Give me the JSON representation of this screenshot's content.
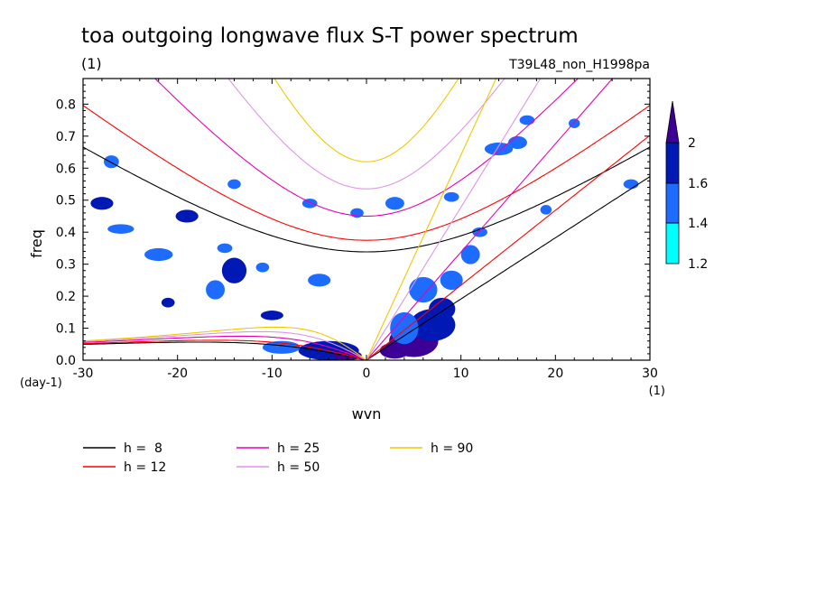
{
  "chart_data": {
    "type": "heatmap",
    "title": "toa outgoing longwave flux S-T power spectrum",
    "subtitle": "(1)",
    "run_label": "T39L48_non_H1998pa",
    "xlabel": "wvn",
    "ylabel": "freq",
    "x_unit": "(1)",
    "y_unit": "(day-1)",
    "xlim": [
      -30,
      30
    ],
    "ylim": [
      0,
      0.88
    ],
    "x_ticks": [
      -30,
      -20,
      -10,
      0,
      10,
      20,
      30
    ],
    "x_tick_labels": [
      "-30",
      "-20",
      "-10",
      "0",
      "10",
      "20",
      "30"
    ],
    "y_ticks": [
      0,
      0.1,
      0.2,
      0.3,
      0.4,
      0.5,
      0.6,
      0.7,
      0.8
    ],
    "y_tick_labels": [
      "0.0",
      "0.1",
      "0.2",
      "0.3",
      "0.4",
      "0.5",
      "0.6",
      "0.7",
      "0.8"
    ],
    "colorbar": {
      "levels": [
        1.2,
        1.4,
        1.6,
        2
      ],
      "level_labels": [
        "1.2",
        "1.4",
        "1.6",
        "2"
      ],
      "colors": [
        "#00ffff",
        "#1e6cff",
        "#0018b4",
        "#3c0096"
      ]
    },
    "blobs": [
      {
        "x": 5,
        "y": 0.06,
        "rx": 2.6,
        "ry": 0.05,
        "level": 3
      },
      {
        "x": 7,
        "y": 0.11,
        "rx": 2.4,
        "ry": 0.05,
        "level": 2
      },
      {
        "x": 8,
        "y": 0.16,
        "rx": 1.4,
        "ry": 0.035,
        "level": 2
      },
      {
        "x": 3,
        "y": 0.03,
        "rx": 1.6,
        "ry": 0.025,
        "level": 3
      },
      {
        "x": 6,
        "y": 0.22,
        "rx": 1.5,
        "ry": 0.04,
        "level": 1
      },
      {
        "x": 9,
        "y": 0.25,
        "rx": 1.2,
        "ry": 0.03,
        "level": 1
      },
      {
        "x": 11,
        "y": 0.33,
        "rx": 1.0,
        "ry": 0.03,
        "level": 1
      },
      {
        "x": 4,
        "y": 0.1,
        "rx": 1.5,
        "ry": 0.05,
        "level": 1
      },
      {
        "x": -4,
        "y": 0.03,
        "rx": 3.2,
        "ry": 0.03,
        "level": 2
      },
      {
        "x": -2,
        "y": 0.015,
        "rx": 1.5,
        "ry": 0.015,
        "level": 3
      },
      {
        "x": -9,
        "y": 0.04,
        "rx": 2.0,
        "ry": 0.02,
        "level": 1
      },
      {
        "x": -10,
        "y": 0.14,
        "rx": 1.2,
        "ry": 0.015,
        "level": 2
      },
      {
        "x": -14,
        "y": 0.28,
        "rx": 1.3,
        "ry": 0.04,
        "level": 2
      },
      {
        "x": -16,
        "y": 0.22,
        "rx": 1.0,
        "ry": 0.03,
        "level": 1
      },
      {
        "x": -19,
        "y": 0.45,
        "rx": 1.2,
        "ry": 0.02,
        "level": 2
      },
      {
        "x": -22,
        "y": 0.33,
        "rx": 1.5,
        "ry": 0.02,
        "level": 1
      },
      {
        "x": -21,
        "y": 0.18,
        "rx": 0.7,
        "ry": 0.015,
        "level": 2
      },
      {
        "x": -28,
        "y": 0.49,
        "rx": 1.2,
        "ry": 0.02,
        "level": 2
      },
      {
        "x": -27,
        "y": 0.62,
        "rx": 0.8,
        "ry": 0.02,
        "level": 1
      },
      {
        "x": -26,
        "y": 0.41,
        "rx": 1.4,
        "ry": 0.015,
        "level": 1
      },
      {
        "x": -5,
        "y": 0.25,
        "rx": 1.2,
        "ry": 0.02,
        "level": 1
      },
      {
        "x": 3,
        "y": 0.49,
        "rx": 1.0,
        "ry": 0.02,
        "level": 1
      },
      {
        "x": 14,
        "y": 0.66,
        "rx": 1.5,
        "ry": 0.02,
        "level": 1
      },
      {
        "x": 16,
        "y": 0.68,
        "rx": 1.0,
        "ry": 0.02,
        "level": 1
      },
      {
        "x": 17,
        "y": 0.75,
        "rx": 0.8,
        "ry": 0.015,
        "level": 1
      },
      {
        "x": 22,
        "y": 0.74,
        "rx": 0.6,
        "ry": 0.015,
        "level": 1
      },
      {
        "x": 28,
        "y": 0.55,
        "rx": 0.8,
        "ry": 0.015,
        "level": 1
      },
      {
        "x": -15,
        "y": 0.35,
        "rx": 0.8,
        "ry": 0.015,
        "level": 1
      },
      {
        "x": -11,
        "y": 0.29,
        "rx": 0.7,
        "ry": 0.015,
        "level": 1
      },
      {
        "x": -6,
        "y": 0.49,
        "rx": 0.8,
        "ry": 0.015,
        "level": 1
      },
      {
        "x": -14,
        "y": 0.55,
        "rx": 0.7,
        "ry": 0.015,
        "level": 1
      },
      {
        "x": 12,
        "y": 0.4,
        "rx": 0.8,
        "ry": 0.015,
        "level": 1
      },
      {
        "x": 19,
        "y": 0.47,
        "rx": 0.6,
        "ry": 0.015,
        "level": 1
      },
      {
        "x": 9,
        "y": 0.51,
        "rx": 0.8,
        "ry": 0.015,
        "level": 1
      },
      {
        "x": -1,
        "y": 0.46,
        "rx": 0.7,
        "ry": 0.015,
        "level": 1
      }
    ],
    "series": [
      {
        "name": "h =  8",
        "h": 8,
        "color": "#000000"
      },
      {
        "name": "h = 12",
        "h": 12,
        "color": "#ff0000"
      },
      {
        "name": "h = 25",
        "h": 25,
        "color": "#e600b4"
      },
      {
        "name": "h = 50",
        "h": 50,
        "color": "#dc96e6"
      },
      {
        "name": "h = 90",
        "h": 90,
        "color": "#f0c800"
      }
    ]
  }
}
